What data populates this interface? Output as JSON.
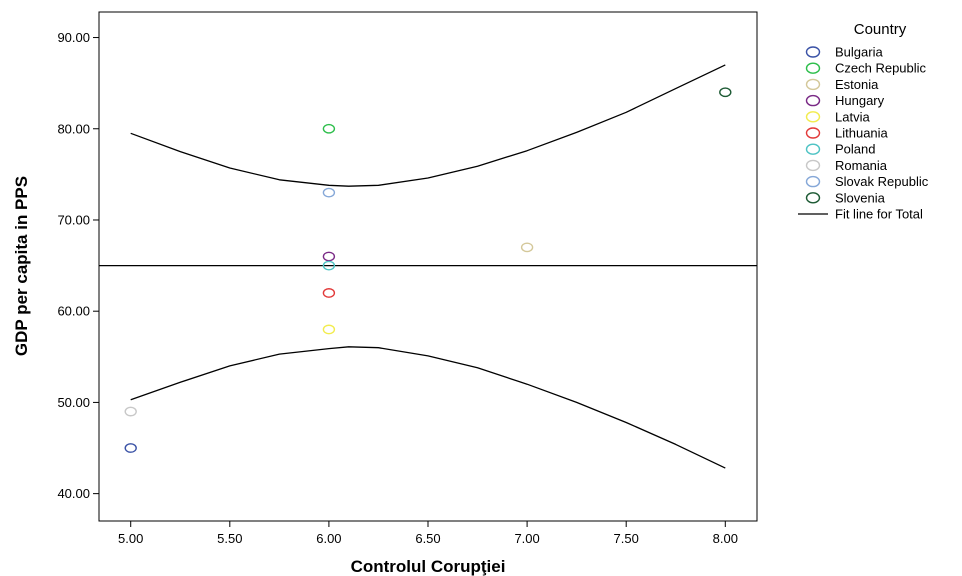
{
  "chart_data": {
    "type": "scatter",
    "xlabel": "Controlul Corupţiei",
    "ylabel": "GDP per capita in PPS",
    "xlim": [
      4.84,
      8.16
    ],
    "ylim": [
      37.0,
      92.8
    ],
    "x_ticks": [
      5.0,
      5.5,
      6.0,
      6.5,
      7.0,
      7.5,
      8.0
    ],
    "x_tick_labels": [
      "5.00",
      "5.50",
      "6.00",
      "6.50",
      "7.00",
      "7.50",
      "8.00"
    ],
    "y_ticks": [
      40,
      50,
      60,
      70,
      80,
      90
    ],
    "y_tick_labels": [
      "40.00",
      "50.00",
      "60.00",
      "70.00",
      "80.00",
      "90.00"
    ],
    "grid": false,
    "legend_title": "Country",
    "legend_position": "right",
    "series": [
      {
        "name": "Bulgaria",
        "color": "#3a52a6",
        "points": [
          [
            5.0,
            45.0
          ]
        ]
      },
      {
        "name": "Czech Republic",
        "color": "#2dbe4b",
        "points": [
          [
            6.0,
            80.0
          ]
        ]
      },
      {
        "name": "Estonia",
        "color": "#d4c89a",
        "points": [
          [
            7.0,
            67.0
          ]
        ]
      },
      {
        "name": "Hungary",
        "color": "#7a2a86",
        "points": [
          [
            6.0,
            66.0
          ]
        ]
      },
      {
        "name": "Latvia",
        "color": "#f2ec4e",
        "points": [
          [
            6.0,
            58.0
          ]
        ]
      },
      {
        "name": "Lithuania",
        "color": "#e23a3a",
        "points": [
          [
            6.0,
            62.0
          ]
        ]
      },
      {
        "name": "Poland",
        "color": "#4ec3c4",
        "points": [
          [
            6.0,
            65.0
          ]
        ]
      },
      {
        "name": "Romania",
        "color": "#c8c8c8",
        "points": [
          [
            5.0,
            49.0
          ]
        ]
      },
      {
        "name": "Slovak Republic",
        "color": "#86a8d8",
        "points": [
          [
            6.0,
            73.0
          ]
        ]
      },
      {
        "name": "Slovenia",
        "color": "#1d5a34",
        "points": [
          [
            8.0,
            84.0
          ]
        ]
      }
    ],
    "fit_line": {
      "name": "Fit line for Total",
      "color": "#000000",
      "y": 65.0
    },
    "confidence_band_upper": [
      [
        5.0,
        79.5
      ],
      [
        5.25,
        77.5
      ],
      [
        5.5,
        75.7
      ],
      [
        5.75,
        74.4
      ],
      [
        6.0,
        73.8
      ],
      [
        6.1,
        73.7
      ],
      [
        6.25,
        73.8
      ],
      [
        6.5,
        74.6
      ],
      [
        6.75,
        75.9
      ],
      [
        7.0,
        77.6
      ],
      [
        7.25,
        79.6
      ],
      [
        7.5,
        81.8
      ],
      [
        7.75,
        84.4
      ],
      [
        8.0,
        87.0
      ]
    ],
    "confidence_band_lower": [
      [
        5.0,
        50.3
      ],
      [
        5.25,
        52.2
      ],
      [
        5.5,
        54.0
      ],
      [
        5.75,
        55.3
      ],
      [
        6.0,
        55.9
      ],
      [
        6.1,
        56.1
      ],
      [
        6.25,
        56.0
      ],
      [
        6.5,
        55.1
      ],
      [
        6.75,
        53.8
      ],
      [
        7.0,
        52.0
      ],
      [
        7.25,
        50.0
      ],
      [
        7.5,
        47.8
      ],
      [
        7.75,
        45.4
      ],
      [
        8.0,
        42.8
      ]
    ]
  }
}
